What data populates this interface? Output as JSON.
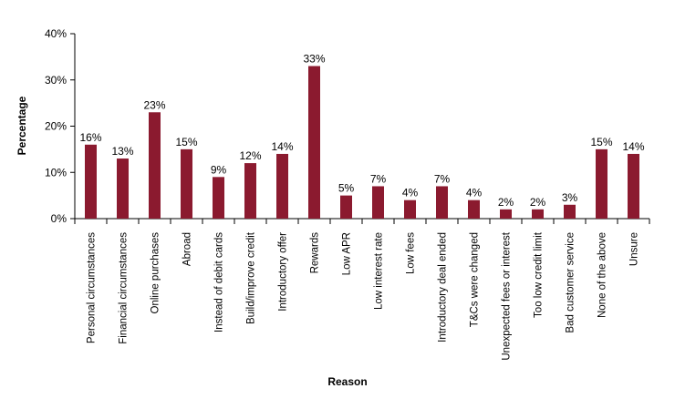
{
  "chart_data": {
    "type": "bar",
    "title": "",
    "xlabel": "Reason",
    "ylabel": "Percentage",
    "ylim": [
      0,
      40
    ],
    "yticks": [
      0,
      10,
      20,
      30,
      40
    ],
    "ytick_labels": [
      "0%",
      "10%",
      "20%",
      "30%",
      "40%"
    ],
    "grid": false,
    "legend": "none",
    "bar_color": "#8b1a2f",
    "categories": [
      "Personal circumstances",
      "Financial circumstances",
      "Online purchases",
      "Abroad",
      "Instead of debit cards",
      "Build/improve credit",
      "Introductory offer",
      "Rewards",
      "Low APR",
      "Low interest rate",
      "Low fees",
      "Introductory deal ended",
      "T&Cs were changed",
      "Unexpected fees or interest",
      "Too low credit limit",
      "Bad customer service",
      "None of the above",
      "Unsure"
    ],
    "values": [
      16,
      13,
      23,
      15,
      9,
      12,
      14,
      33,
      5,
      7,
      4,
      7,
      4,
      2,
      2,
      3,
      15,
      14
    ],
    "value_labels": [
      "16%",
      "13%",
      "23%",
      "15%",
      "9%",
      "12%",
      "14%",
      "33%",
      "5%",
      "7%",
      "4%",
      "7%",
      "4%",
      "2%",
      "2%",
      "3%",
      "15%",
      "14%"
    ]
  }
}
